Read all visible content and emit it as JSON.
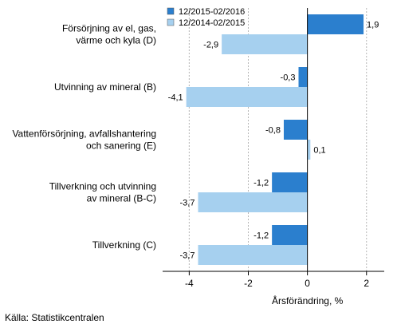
{
  "chart_data": {
    "type": "bar",
    "orientation": "horizontal",
    "categories": [
      [
        "Försörjning av el, gas,",
        "värme och kyla (D)"
      ],
      [
        "Utvinning av mineral (B)"
      ],
      [
        "Vattenförsörjning, avfallshantering",
        "och sanering (E)"
      ],
      [
        "Tillverkning och utvinning",
        "av mineral (B-C)"
      ],
      [
        "Tillverkning (C)"
      ]
    ],
    "series": [
      {
        "name": "12/2015-02/2016",
        "color": "#2b7fce",
        "values": [
          1.9,
          -0.3,
          -0.8,
          -1.2,
          -1.2
        ],
        "labels": [
          "1,9",
          "-0,3",
          "-0,8",
          "-1,2",
          "-1,2"
        ]
      },
      {
        "name": "12/2014-02/2015",
        "color": "#a6d0ef",
        "values": [
          -2.9,
          -4.1,
          0.1,
          -3.7,
          -3.7
        ],
        "labels": [
          "-2,9",
          "-4,1",
          "0,1",
          "-3,7",
          "-3,7"
        ]
      }
    ],
    "xlim": [
      -4.9,
      2.6
    ],
    "xticks": [
      -4,
      -2,
      0,
      2
    ],
    "xtick_labels": [
      "-4",
      "-2",
      "0",
      "2"
    ],
    "xlabel": "Årsförändring, %",
    "grid": "vertical lines at ticks",
    "legend_position": "top-left"
  },
  "source": "Källa: Statistikcentralen"
}
